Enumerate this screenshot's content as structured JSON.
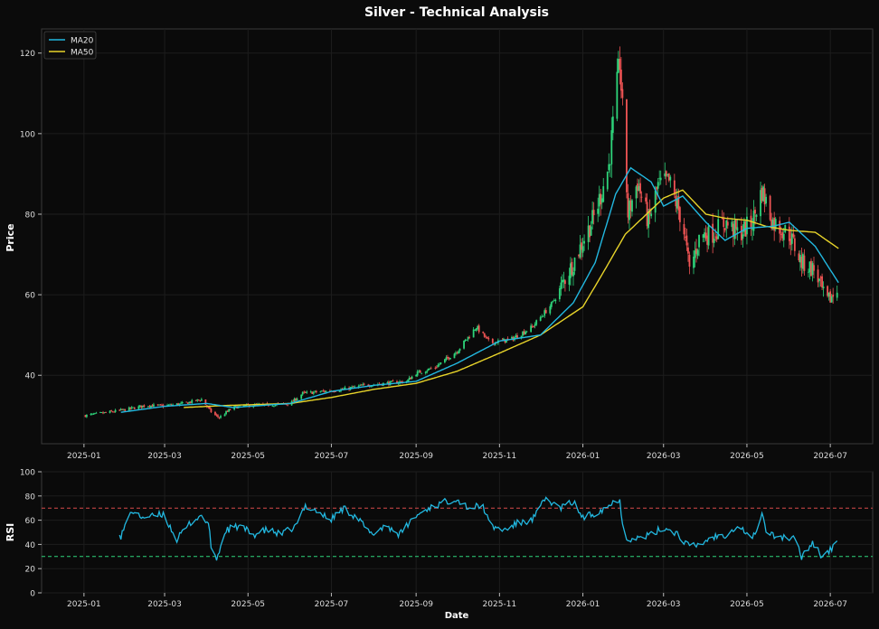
{
  "chart_data": [
    {
      "type": "candlestick",
      "title": "Silver - Technical Analysis",
      "ylabel": "Price",
      "xlabel": "",
      "ylim": [
        23,
        126
      ],
      "yticks": [
        40,
        60,
        80,
        100,
        120
      ],
      "x_ticks": [
        "2025-01",
        "2025-03",
        "2025-05",
        "2025-07",
        "2025-09",
        "2025-11",
        "2026-01",
        "2026-03",
        "2026-05",
        "2026-07"
      ],
      "grid": true,
      "legend": {
        "position": "top-left",
        "entries": [
          "MA20",
          "MA50"
        ]
      },
      "colors": {
        "up": "#2ed47a",
        "down": "#f05454",
        "ma20": "#22b8e0",
        "ma50": "#e8d42a",
        "background": "#0b0b0b",
        "panel": "#0a0a0a"
      },
      "price_close_anchors": [
        [
          "2025-01-02",
          30.0
        ],
        [
          "2025-01-15",
          30.6
        ],
        [
          "2025-02-01",
          31.5
        ],
        [
          "2025-02-15",
          32.5
        ],
        [
          "2025-03-01",
          32.4
        ],
        [
          "2025-03-15",
          33.0
        ],
        [
          "2025-03-28",
          34.0
        ],
        [
          "2025-04-05",
          30.5
        ],
        [
          "2025-04-10",
          29.5
        ],
        [
          "2025-04-20",
          32.0
        ],
        [
          "2025-05-01",
          32.5
        ],
        [
          "2025-05-15",
          32.6
        ],
        [
          "2025-06-01",
          33.0
        ],
        [
          "2025-06-10",
          35.5
        ],
        [
          "2025-06-25",
          36.0
        ],
        [
          "2025-07-10",
          36.5
        ],
        [
          "2025-07-25",
          37.5
        ],
        [
          "2025-08-10",
          38.0
        ],
        [
          "2025-08-25",
          38.5
        ],
        [
          "2025-09-01",
          40.5
        ],
        [
          "2025-09-15",
          42.0
        ],
        [
          "2025-10-01",
          46.0
        ],
        [
          "2025-10-15",
          52.0
        ],
        [
          "2025-10-25",
          48.0
        ],
        [
          "2025-11-10",
          49.0
        ],
        [
          "2025-11-25",
          52.0
        ],
        [
          "2025-12-10",
          58.0
        ],
        [
          "2025-12-25",
          68.0
        ],
        [
          "2026-01-10",
          80.0
        ],
        [
          "2026-01-20",
          92.0
        ],
        [
          "2026-01-28",
          118.0
        ],
        [
          "2026-02-03",
          80.0
        ],
        [
          "2026-02-10",
          88.0
        ],
        [
          "2026-02-18",
          78.0
        ],
        [
          "2026-02-25",
          87.0
        ],
        [
          "2026-03-05",
          88.0
        ],
        [
          "2026-03-15",
          78.0
        ],
        [
          "2026-03-20",
          66.0
        ],
        [
          "2026-03-28",
          75.0
        ],
        [
          "2026-04-05",
          75.0
        ],
        [
          "2026-04-15",
          78.0
        ],
        [
          "2026-04-25",
          75.0
        ],
        [
          "2026-05-05",
          78.0
        ],
        [
          "2026-05-12",
          86.0
        ],
        [
          "2026-05-20",
          78.0
        ],
        [
          "2026-06-01",
          75.0
        ],
        [
          "2026-06-10",
          68.0
        ],
        [
          "2026-06-20",
          66.0
        ],
        [
          "2026-06-28",
          58.0
        ],
        [
          "2026-07-06",
          61.0
        ]
      ],
      "ma20_anchors": [
        [
          "2025-01-28",
          30.8
        ],
        [
          "2025-03-01",
          32.3
        ],
        [
          "2025-04-01",
          33.0
        ],
        [
          "2025-04-20",
          32.0
        ],
        [
          "2025-06-01",
          33.0
        ],
        [
          "2025-07-01",
          36.0
        ],
        [
          "2025-08-01",
          37.5
        ],
        [
          "2025-09-01",
          38.5
        ],
        [
          "2025-10-01",
          43.0
        ],
        [
          "2025-11-01",
          48.5
        ],
        [
          "2025-12-01",
          50.0
        ],
        [
          "2025-12-25",
          58.0
        ],
        [
          "2026-01-10",
          68.0
        ],
        [
          "2026-01-25",
          85.0
        ],
        [
          "2026-02-05",
          91.5
        ],
        [
          "2026-02-20",
          88.0
        ],
        [
          "2026-03-01",
          82.0
        ],
        [
          "2026-03-15",
          84.5
        ],
        [
          "2026-04-01",
          78.0
        ],
        [
          "2026-04-15",
          73.5
        ],
        [
          "2026-05-01",
          76.5
        ],
        [
          "2026-05-20",
          77.0
        ],
        [
          "2026-06-01",
          78.0
        ],
        [
          "2026-06-20",
          72.0
        ],
        [
          "2026-07-07",
          63.0
        ]
      ],
      "ma50_anchors": [
        [
          "2025-03-15",
          32.0
        ],
        [
          "2025-04-15",
          32.5
        ],
        [
          "2025-06-01",
          33.0
        ],
        [
          "2025-07-01",
          34.5
        ],
        [
          "2025-08-01",
          36.5
        ],
        [
          "2025-09-01",
          38.0
        ],
        [
          "2025-10-01",
          41.0
        ],
        [
          "2025-11-01",
          45.5
        ],
        [
          "2025-12-01",
          50.0
        ],
        [
          "2026-01-01",
          57.0
        ],
        [
          "2026-01-15",
          65.0
        ],
        [
          "2026-02-01",
          75.0
        ],
        [
          "2026-02-15",
          79.5
        ],
        [
          "2026-03-01",
          84.0
        ],
        [
          "2026-03-15",
          86.0
        ],
        [
          "2026-04-01",
          80.0
        ],
        [
          "2026-04-15",
          79.0
        ],
        [
          "2026-05-01",
          78.5
        ],
        [
          "2026-05-15",
          77.0
        ],
        [
          "2026-06-01",
          76.0
        ],
        [
          "2026-06-20",
          75.5
        ],
        [
          "2026-07-07",
          71.5
        ]
      ]
    },
    {
      "type": "line",
      "title": "",
      "ylabel": "RSI",
      "xlabel": "Date",
      "ylim": [
        0,
        100
      ],
      "yticks": [
        0,
        20,
        40,
        60,
        80,
        100
      ],
      "x_ticks": [
        "2025-01",
        "2025-03",
        "2025-05",
        "2025-07",
        "2025-09",
        "2025-11",
        "2026-01",
        "2026-03",
        "2026-05",
        "2026-07"
      ],
      "reference_lines": [
        {
          "value": 70,
          "color": "#d84a4a"
        },
        {
          "value": 30,
          "color": "#2ed47a"
        }
      ],
      "rsi_color": "#22b8e0",
      "rsi_anchors": [
        [
          "2025-01-25",
          58
        ],
        [
          "2025-01-28",
          47
        ],
        [
          "2025-02-05",
          68
        ],
        [
          "2025-02-10",
          63
        ],
        [
          "2025-02-20",
          63
        ],
        [
          "2025-02-28",
          65
        ],
        [
          "2025-03-10",
          44
        ],
        [
          "2025-03-20",
          58
        ],
        [
          "2025-03-28",
          64
        ],
        [
          "2025-04-02",
          57
        ],
        [
          "2025-04-05",
          30
        ],
        [
          "2025-04-08",
          28
        ],
        [
          "2025-04-15",
          52
        ],
        [
          "2025-04-25",
          55
        ],
        [
          "2025-05-05",
          48
        ],
        [
          "2025-05-15",
          52
        ],
        [
          "2025-05-25",
          48
        ],
        [
          "2025-06-05",
          55
        ],
        [
          "2025-06-12",
          72
        ],
        [
          "2025-06-20",
          68
        ],
        [
          "2025-06-30",
          60
        ],
        [
          "2025-07-10",
          70
        ],
        [
          "2025-07-20",
          62
        ],
        [
          "2025-07-30",
          48
        ],
        [
          "2025-08-10",
          56
        ],
        [
          "2025-08-20",
          48
        ],
        [
          "2025-08-30",
          62
        ],
        [
          "2025-09-10",
          70
        ],
        [
          "2025-09-20",
          74
        ],
        [
          "2025-09-30",
          78
        ],
        [
          "2025-10-10",
          70
        ],
        [
          "2025-10-20",
          72
        ],
        [
          "2025-10-25",
          55
        ],
        [
          "2025-11-05",
          52
        ],
        [
          "2025-11-15",
          58
        ],
        [
          "2025-11-25",
          60
        ],
        [
          "2025-12-05",
          78
        ],
        [
          "2025-12-15",
          70
        ],
        [
          "2025-12-25",
          75
        ],
        [
          "2026-01-01",
          62
        ],
        [
          "2026-01-10",
          66
        ],
        [
          "2026-01-20",
          72
        ],
        [
          "2026-01-28",
          78
        ],
        [
          "2026-01-31",
          45
        ],
        [
          "2026-02-10",
          45
        ],
        [
          "2026-02-20",
          48
        ],
        [
          "2026-03-01",
          54
        ],
        [
          "2026-03-10",
          50
        ],
        [
          "2026-03-20",
          38
        ],
        [
          "2026-03-28",
          40
        ],
        [
          "2026-04-05",
          46
        ],
        [
          "2026-04-15",
          48
        ],
        [
          "2026-04-25",
          56
        ],
        [
          "2026-05-05",
          44
        ],
        [
          "2026-05-12",
          65
        ],
        [
          "2026-05-16",
          48
        ],
        [
          "2026-05-28",
          46
        ],
        [
          "2026-06-05",
          44
        ],
        [
          "2026-06-10",
          30
        ],
        [
          "2026-06-18",
          42
        ],
        [
          "2026-06-25",
          30
        ],
        [
          "2026-07-06",
          40
        ]
      ]
    }
  ]
}
